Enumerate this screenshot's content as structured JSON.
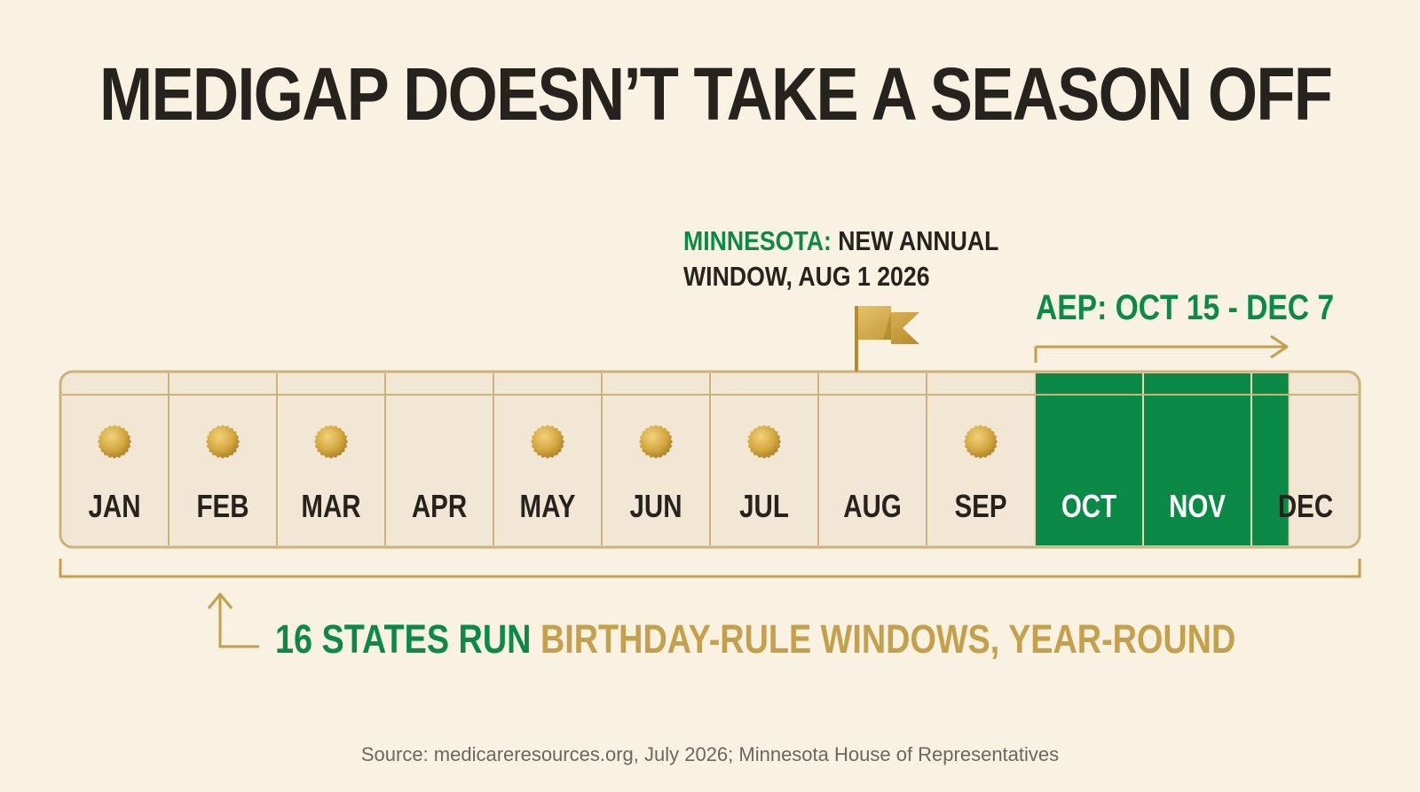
{
  "title": "MEDIGAP DOESN’T TAKE A SEASON OFF",
  "minnesota_note": {
    "label": "MINNESOTA:",
    "line1_rest": " NEW ANNUAL",
    "line2": "WINDOW, AUG 1 2026"
  },
  "aep_label": "AEP: OCT 15 - DEC 7",
  "calendar": {
    "months": [
      {
        "label": "JAN",
        "dot": true,
        "aep": false
      },
      {
        "label": "FEB",
        "dot": true,
        "aep": false
      },
      {
        "label": "MAR",
        "dot": true,
        "aep": false
      },
      {
        "label": "APR",
        "dot": false,
        "aep": false
      },
      {
        "label": "MAY",
        "dot": true,
        "aep": false
      },
      {
        "label": "JUN",
        "dot": true,
        "aep": false
      },
      {
        "label": "JUL",
        "dot": true,
        "aep": false
      },
      {
        "label": "AUG",
        "dot": false,
        "aep": false
      },
      {
        "label": "SEP",
        "dot": true,
        "aep": false
      },
      {
        "label": "OCT",
        "dot": false,
        "aep": true
      },
      {
        "label": "NOV",
        "dot": false,
        "aep": true
      },
      {
        "label": "DEC",
        "dot": false,
        "aep": false
      }
    ],
    "aep_dec_fraction": 0.35,
    "flag_month": "AUG"
  },
  "footnote": {
    "green_part": "16 STATES RUN ",
    "gold_part": "BIRTHDAY-RULE WINDOWS, YEAR-ROUND"
  },
  "source": "Source: medicareresources.org, July 2026; Minnesota House of Representatives",
  "colors": {
    "background": "#f9f1e1",
    "green": "#0b8a47",
    "gold": "#c4a04a",
    "dark": "#26231e",
    "cell": "#f2e6d4"
  }
}
